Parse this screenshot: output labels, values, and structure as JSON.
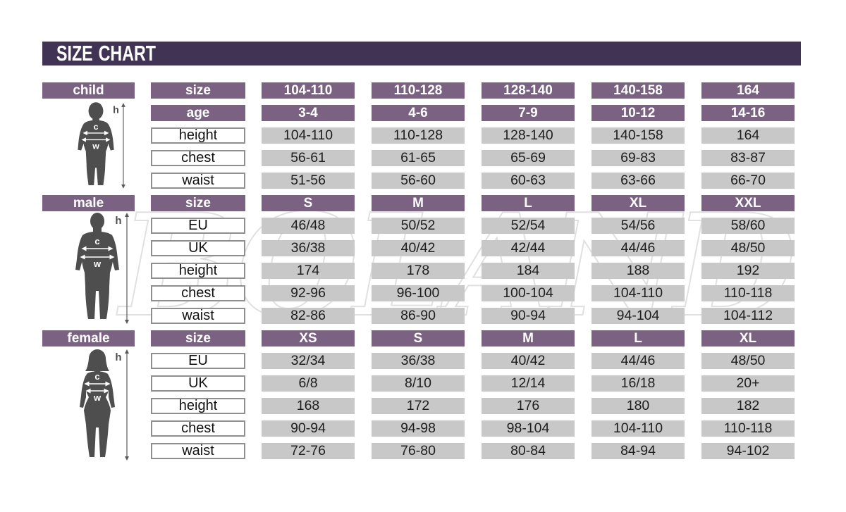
{
  "chart_data": {
    "type": "table",
    "title": "SIZE CHART",
    "sections": [
      {
        "id": "child",
        "label": "child",
        "rows": [
          {
            "kind": "header",
            "label": "size",
            "values": [
              "104-110",
              "110-128",
              "128-140",
              "140-158",
              "164"
            ]
          },
          {
            "kind": "header",
            "label": "age",
            "values": [
              "3-4",
              "4-6",
              "7-9",
              "10-12",
              "14-16"
            ]
          },
          {
            "kind": "data",
            "label": "height",
            "values": [
              "104-110",
              "110-128",
              "128-140",
              "140-158",
              "164"
            ]
          },
          {
            "kind": "data",
            "label": "chest",
            "values": [
              "56-61",
              "61-65",
              "65-69",
              "69-83",
              "83-87"
            ]
          },
          {
            "kind": "data",
            "label": "waist",
            "values": [
              "51-56",
              "56-60",
              "60-63",
              "63-66",
              "66-70"
            ]
          }
        ]
      },
      {
        "id": "male",
        "label": "male",
        "rows": [
          {
            "kind": "header",
            "label": "size",
            "values": [
              "S",
              "M",
              "L",
              "XL",
              "XXL"
            ]
          },
          {
            "kind": "data",
            "label": "EU",
            "values": [
              "46/48",
              "50/52",
              "52/54",
              "54/56",
              "58/60"
            ]
          },
          {
            "kind": "data",
            "label": "UK",
            "values": [
              "36/38",
              "40/42",
              "42/44",
              "44/46",
              "48/50"
            ]
          },
          {
            "kind": "data",
            "label": "height",
            "values": [
              "174",
              "178",
              "184",
              "188",
              "192"
            ]
          },
          {
            "kind": "data",
            "label": "chest",
            "values": [
              "92-96",
              "96-100",
              "100-104",
              "104-110",
              "110-118"
            ]
          },
          {
            "kind": "data",
            "label": "waist",
            "values": [
              "82-86",
              "86-90",
              "90-94",
              "94-104",
              "104-112"
            ]
          }
        ]
      },
      {
        "id": "female",
        "label": "female",
        "rows": [
          {
            "kind": "header",
            "label": "size",
            "values": [
              "XS",
              "S",
              "M",
              "L",
              "XL"
            ]
          },
          {
            "kind": "data",
            "label": "EU",
            "values": [
              "32/34",
              "36/38",
              "40/42",
              "44/46",
              "48/50"
            ]
          },
          {
            "kind": "data",
            "label": "UK",
            "values": [
              "6/8",
              "8/10",
              "12/14",
              "16/18",
              "20+"
            ]
          },
          {
            "kind": "data",
            "label": "height",
            "values": [
              "168",
              "172",
              "176",
              "180",
              "182"
            ]
          },
          {
            "kind": "data",
            "label": "chest",
            "values": [
              "90-94",
              "94-98",
              "98-104",
              "104-110",
              "110-118"
            ]
          },
          {
            "kind": "data",
            "label": "waist",
            "values": [
              "72-76",
              "76-80",
              "80-84",
              "84-94",
              "94-102"
            ]
          }
        ]
      }
    ]
  },
  "figure_labels": {
    "height": "h",
    "chest": "c",
    "waist": "w"
  },
  "watermark": "BOLAND",
  "colors": {
    "banner_bg": "#403353",
    "header_bg": "#7c6282",
    "cell_bg": "#c9c8c8",
    "silhouette": "#4f4e4e",
    "text_dark": "#1e1e1e"
  }
}
